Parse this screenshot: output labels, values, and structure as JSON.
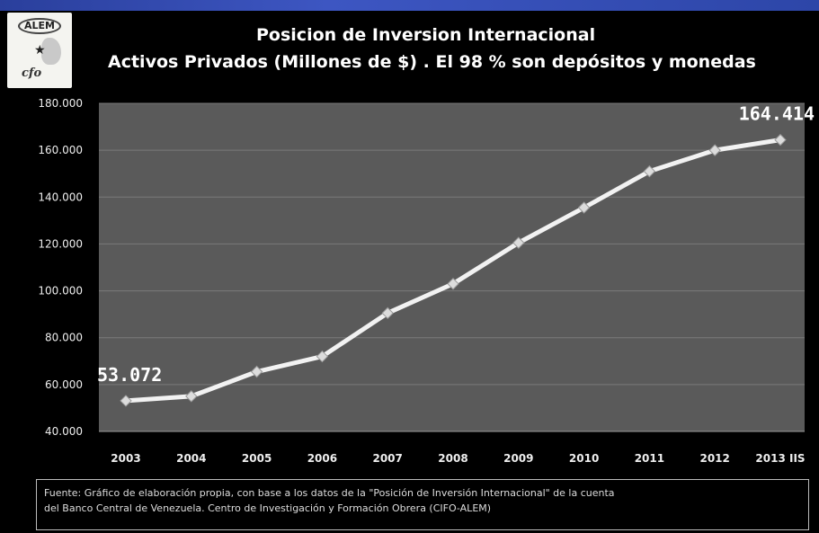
{
  "logo": {
    "text": "ALEM",
    "script": "cfo"
  },
  "header": {
    "title_line1": "Posicion de Inversion Internacional",
    "title_line2": "Activos Privados  (Millones de $) . El 98 % son depósitos y monedas"
  },
  "chart_data": {
    "type": "line",
    "title": "Posicion de Inversion Internacional",
    "subtitle": "Activos Privados  (Millones de $) . El 98 % son depósitos y monedas",
    "xlabel": "",
    "ylabel": "",
    "categories": [
      "2003",
      "2004",
      "2005",
      "2006",
      "2007",
      "2008",
      "2009",
      "2010",
      "2011",
      "2012",
      "2013 IIS"
    ],
    "series": [
      {
        "values": [
          53072,
          55000,
          65500,
          72000,
          90500,
          103000,
          120500,
          135500,
          151000,
          160000,
          164414
        ]
      }
    ],
    "ylim": [
      40000,
      180000
    ],
    "yticks": [
      "40.000",
      "60.000",
      "80.000",
      "100.000",
      "120.000",
      "140.000",
      "160.000",
      "180.000"
    ],
    "data_labels": [
      {
        "index": 0,
        "text": "53.072"
      },
      {
        "index": 10,
        "text": "164.414"
      }
    ],
    "grid": true,
    "background": "#5a5a5a",
    "line_color": "#f2f2f2"
  },
  "source": {
    "line1": "Fuente:  Gráfico de elaboración propia, con base a los datos de la \"Posición de Inversión Internacional\" de la cuenta",
    "line2": "del Banco Central de Venezuela.  Centro de Investigación y Formación Obrera (CIFO-ALEM)"
  }
}
